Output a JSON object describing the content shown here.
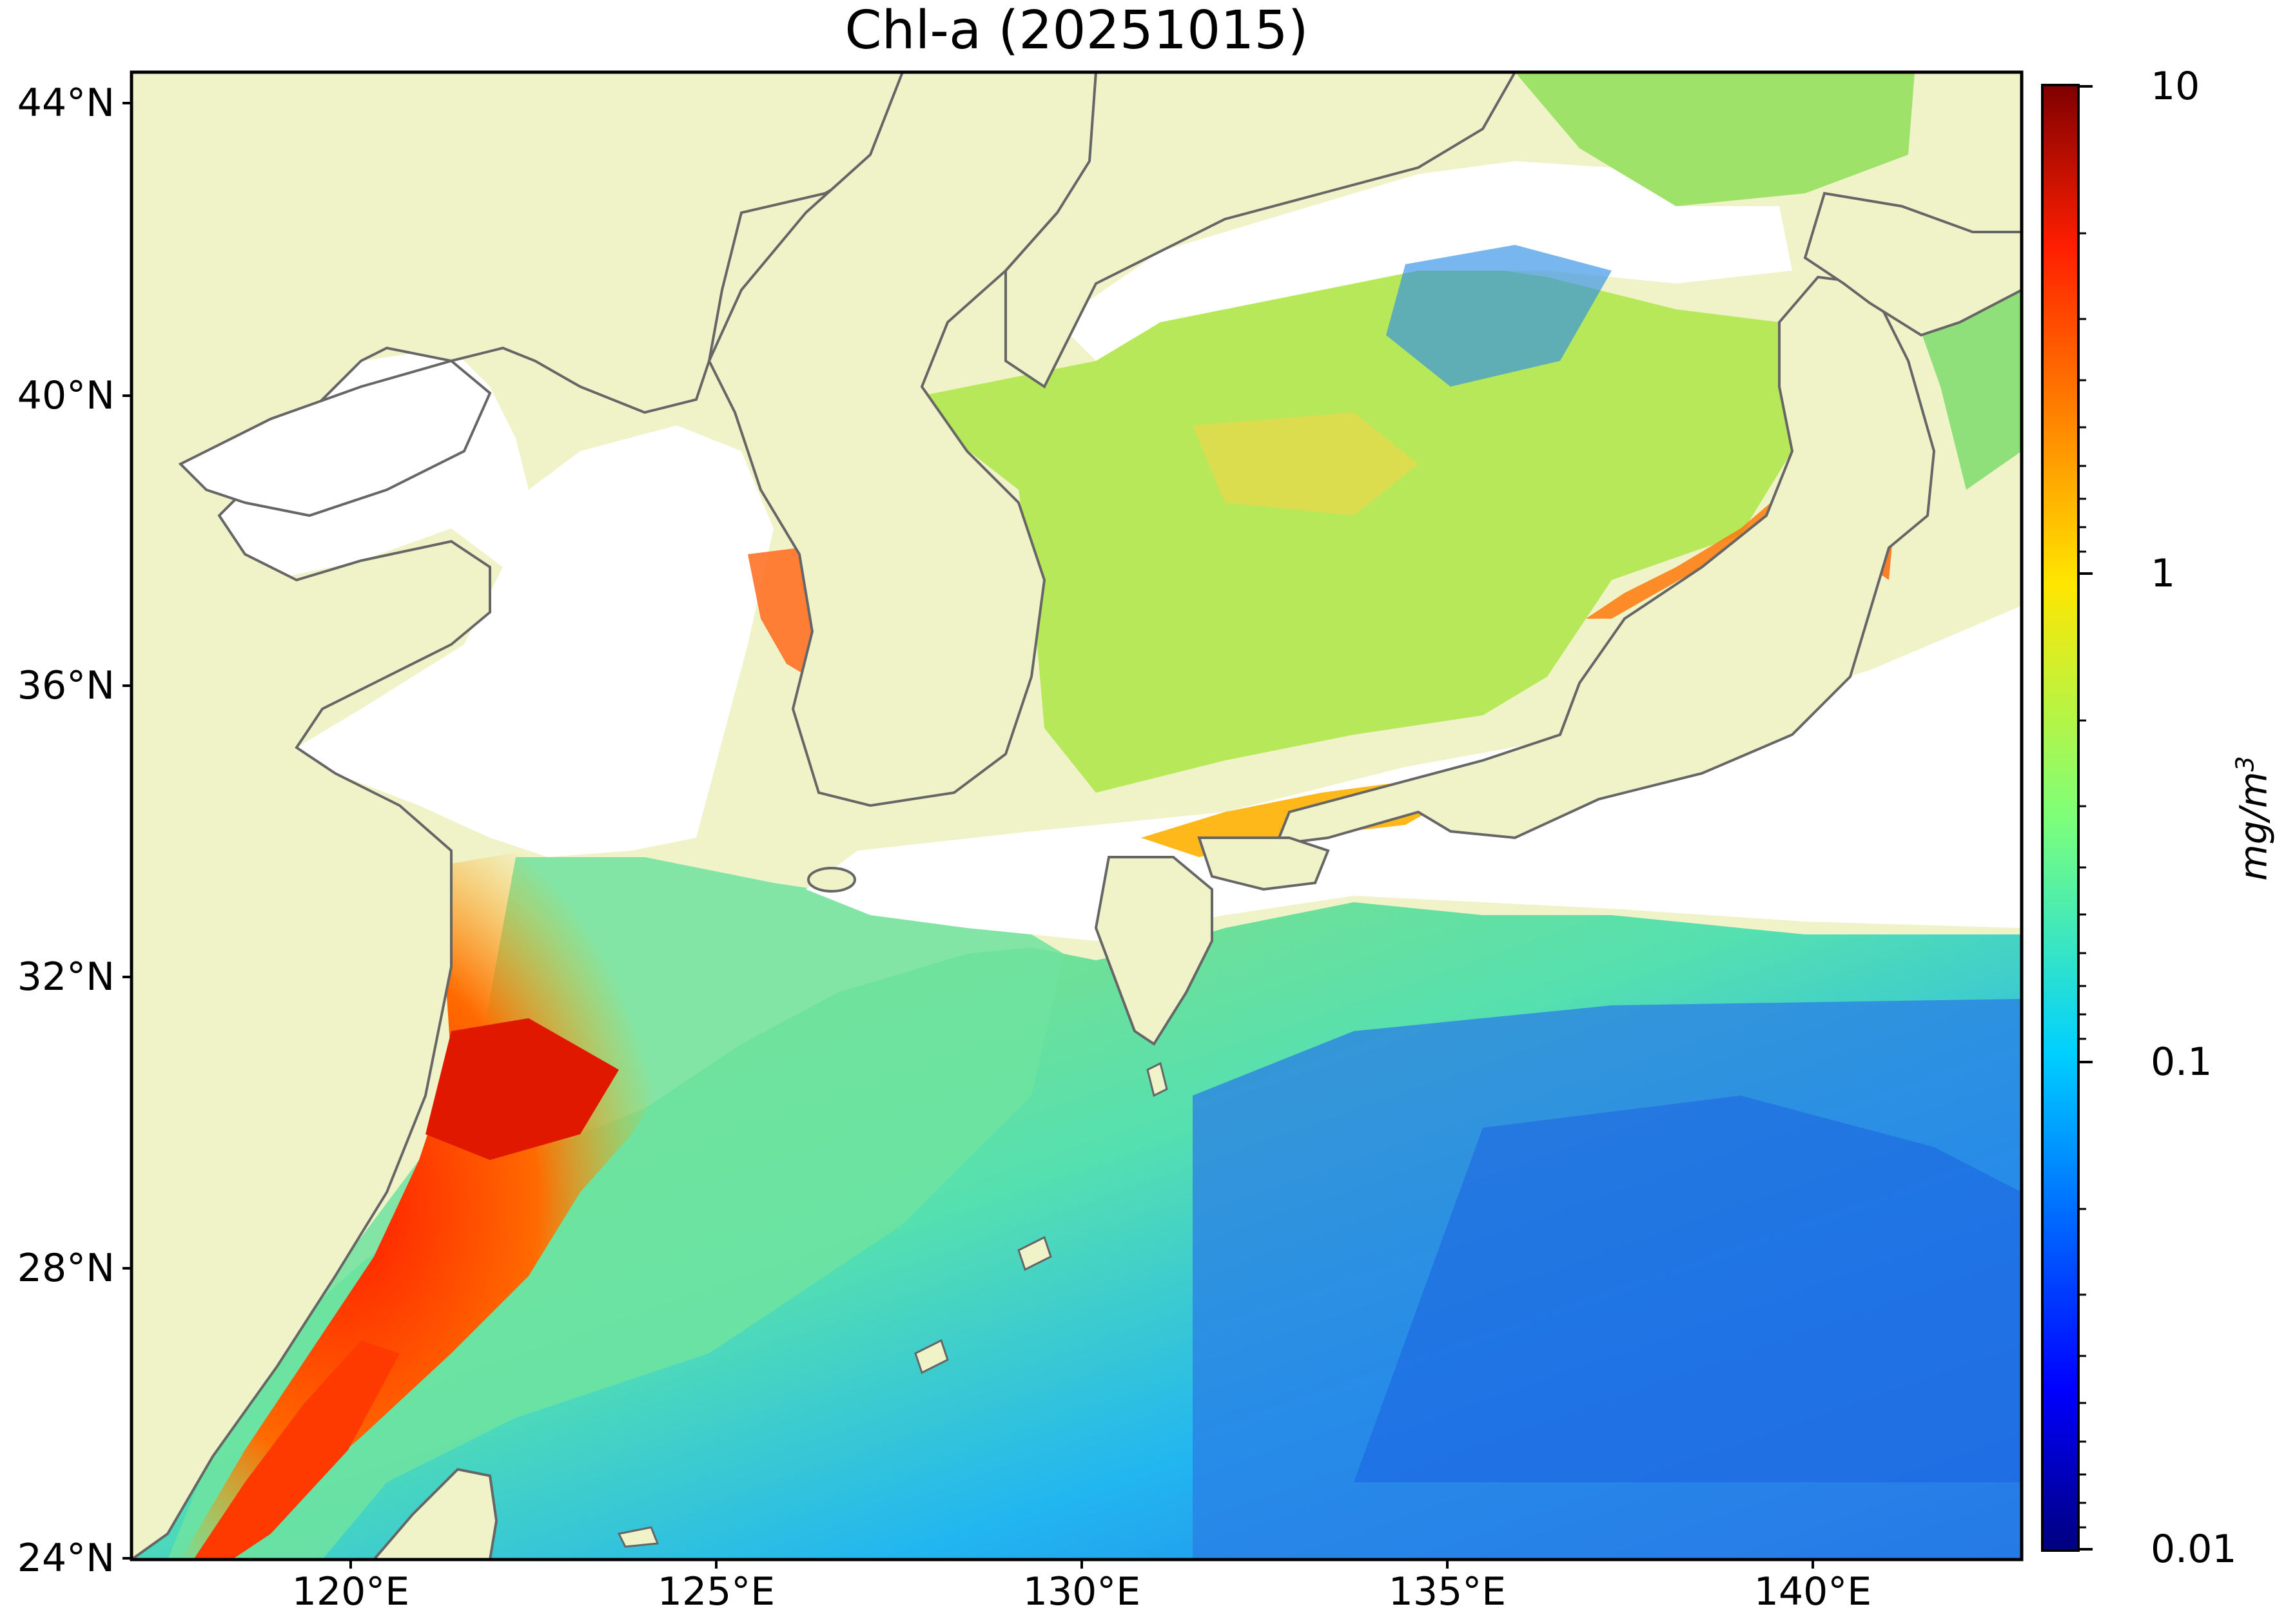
{
  "title": "Chl-a (20251015)",
  "map": {
    "lat_ticks": [
      "44°N",
      "40°N",
      "36°N",
      "32°N",
      "28°N",
      "24°N"
    ],
    "lon_ticks": [
      "120°E",
      "125°E",
      "130°E",
      "135°E",
      "140°E"
    ],
    "lat_range": [
      24,
      44.5
    ],
    "lon_range": [
      117,
      143
    ],
    "land_color": "#f0f2c8",
    "coast_color": "#666666",
    "missing_color": "#ffffff"
  },
  "colorbar": {
    "labels": [
      "10",
      "1",
      "0.1",
      "0.01"
    ],
    "unit": "mg/m",
    "unit_exp": "3",
    "scale": "log",
    "range": [
      0.01,
      10
    ],
    "colormap": "jet"
  }
}
